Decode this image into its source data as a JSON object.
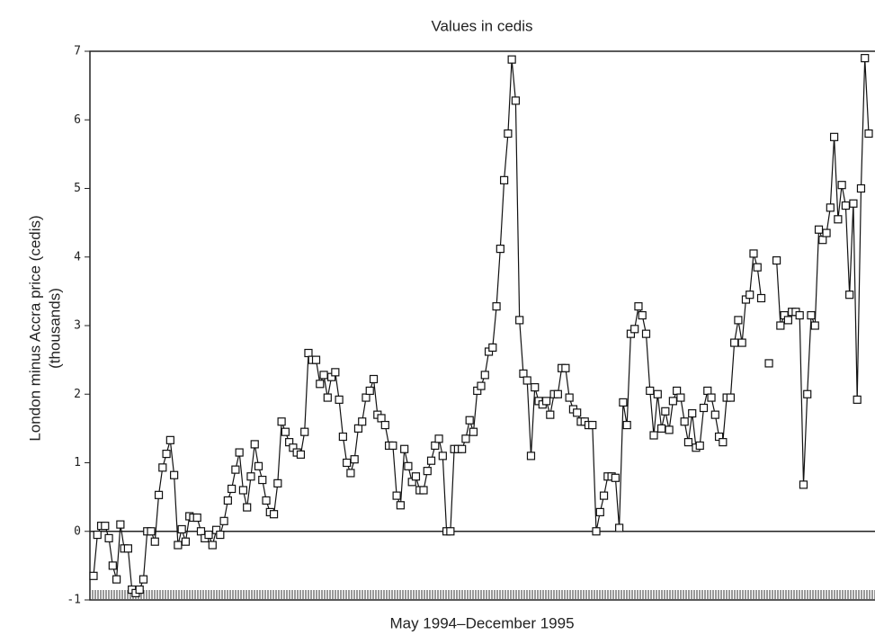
{
  "chart_data": {
    "type": "line",
    "title": "Values in cedis",
    "y_label": [
      "London minus Accra price (cedis)",
      "(thousands)"
    ],
    "x_label": "May 1994–December 1995",
    "color": "#111111",
    "ylim": [
      -1,
      7
    ],
    "yticks": [
      -1,
      0,
      1,
      2,
      3,
      4,
      5,
      6,
      7
    ],
    "zero_line": true,
    "values": [
      -0.65,
      -0.05,
      0.08,
      0.08,
      -0.1,
      -0.5,
      -0.7,
      0.1,
      -0.25,
      -0.25,
      -0.85,
      -0.9,
      -0.85,
      -0.7,
      0.0,
      0.0,
      -0.15,
      0.53,
      0.93,
      1.13,
      1.33,
      0.82,
      -0.2,
      0.03,
      -0.15,
      0.22,
      0.2,
      0.2,
      0.0,
      -0.1,
      -0.05,
      -0.2,
      0.02,
      -0.05,
      0.15,
      0.45,
      0.62,
      0.9,
      1.15,
      0.6,
      0.35,
      0.8,
      1.27,
      0.95,
      0.75,
      0.45,
      0.28,
      0.25,
      0.7,
      1.6,
      1.45,
      1.3,
      1.22,
      1.15,
      1.12,
      1.45,
      2.6,
      2.5,
      2.5,
      2.15,
      2.28,
      1.95,
      2.25,
      2.32,
      1.92,
      1.38,
      1.0,
      0.85,
      1.05,
      1.5,
      1.6,
      1.95,
      2.05,
      2.22,
      1.7,
      1.65,
      1.55,
      1.25,
      1.25,
      0.52,
      0.38,
      1.2,
      0.95,
      0.72,
      0.8,
      0.6,
      0.6,
      0.88,
      1.03,
      1.25,
      1.35,
      1.1,
      0.0,
      0.0,
      1.2,
      1.2,
      1.2,
      1.35,
      1.62,
      1.45,
      2.05,
      2.12,
      2.28,
      2.62,
      2.68,
      3.28,
      4.12,
      5.12,
      5.8,
      6.88,
      6.28,
      3.08,
      2.3,
      2.2,
      1.1,
      2.1,
      1.9,
      1.85,
      1.9,
      1.7,
      2.0,
      2.0,
      2.38,
      2.38,
      1.95,
      1.78,
      1.73,
      1.6,
      1.6,
      1.55,
      1.55,
      0.0,
      0.28,
      0.52,
      0.8,
      0.8,
      0.78,
      0.05,
      1.88,
      1.55,
      2.88,
      2.95,
      3.28,
      3.15,
      2.88,
      2.05,
      1.4,
      2.0,
      1.5,
      1.75,
      1.48,
      1.9,
      2.05,
      1.95,
      1.6,
      1.3,
      1.72,
      1.22,
      1.25,
      1.8,
      2.05,
      1.95,
      1.7,
      1.38,
      1.3,
      1.95,
      1.95,
      2.75,
      3.08,
      2.75,
      3.38,
      3.45,
      4.05,
      3.85,
      3.4,
      null,
      2.45,
      null,
      3.95,
      3.0,
      3.15,
      3.08,
      3.2,
      3.2,
      3.15,
      0.68,
      2.0,
      3.15,
      3.0,
      4.4,
      4.25,
      4.35,
      4.72,
      5.75,
      4.55,
      5.05,
      4.75,
      3.45,
      4.78,
      1.92,
      5.0,
      6.9,
      5.8
    ]
  }
}
